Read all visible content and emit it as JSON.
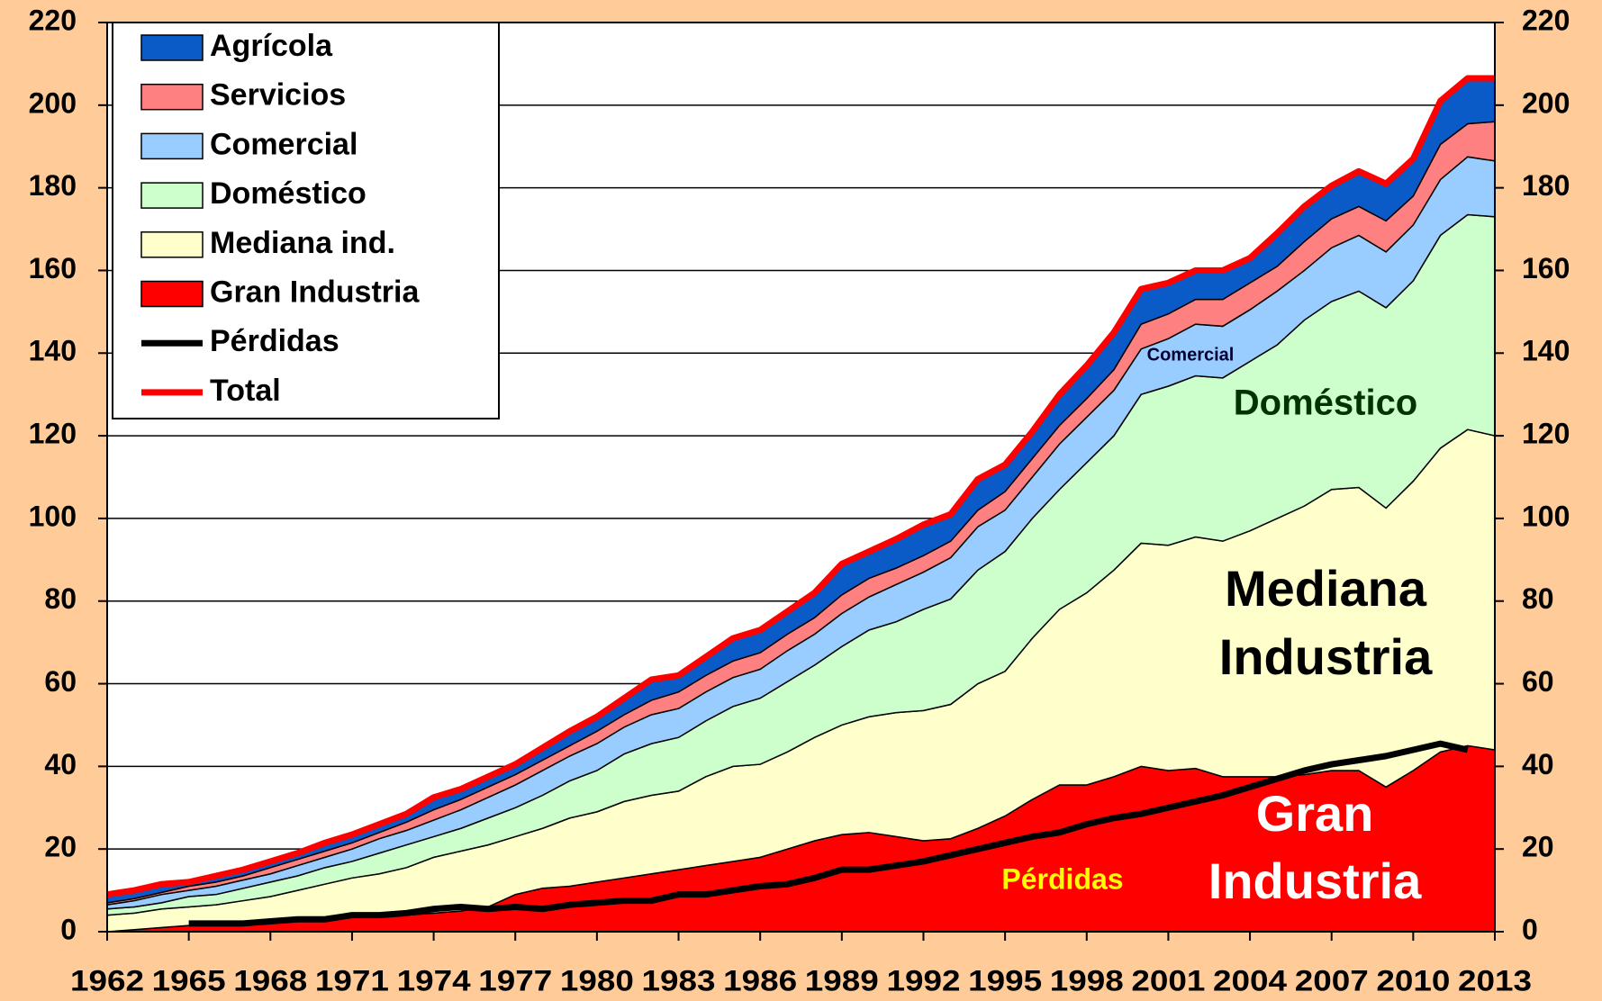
{
  "chart_data": {
    "type": "stacked-area",
    "x": [
      1962,
      1963,
      1964,
      1965,
      1966,
      1967,
      1968,
      1969,
      1970,
      1971,
      1972,
      1973,
      1974,
      1975,
      1976,
      1977,
      1978,
      1979,
      1980,
      1981,
      1982,
      1983,
      1984,
      1985,
      1986,
      1987,
      1988,
      1989,
      1990,
      1991,
      1992,
      1993,
      1994,
      1995,
      1996,
      1997,
      1998,
      1999,
      2000,
      2001,
      2002,
      2003,
      2004,
      2005,
      2006,
      2007,
      2008,
      2009,
      2010,
      2011,
      2012,
      2013
    ],
    "xlim": [
      1962,
      2013
    ],
    "xticks": [
      1962,
      1965,
      1968,
      1971,
      1974,
      1977,
      1980,
      1983,
      1986,
      1989,
      1992,
      1995,
      1998,
      2001,
      2004,
      2007,
      2010,
      2013
    ],
    "ylim": [
      0,
      220
    ],
    "yticks": [
      0,
      20,
      40,
      60,
      80,
      100,
      120,
      140,
      160,
      180,
      200,
      220
    ],
    "y2lim": [
      0,
      220
    ],
    "y2ticks": [
      0,
      20,
      40,
      60,
      80,
      100,
      120,
      140,
      160,
      180,
      200,
      220
    ],
    "grid": true,
    "legend": "upper left",
    "series": [
      {
        "name": "Gran Industria",
        "type": "area",
        "color": "#ff0000",
        "values": [
          0,
          0.5,
          1,
          1.5,
          1.5,
          2,
          2,
          2.5,
          3,
          3.5,
          3.5,
          4,
          4.5,
          5,
          6,
          9,
          10.5,
          11,
          12,
          13,
          14,
          15,
          16,
          17,
          18,
          20,
          22,
          23.5,
          24,
          23,
          22,
          22.5,
          25,
          28,
          32,
          35.5,
          35.5,
          37.5,
          40,
          39,
          39.5,
          37.5,
          37.5,
          37.5,
          38,
          39,
          39,
          35,
          39,
          43.5,
          45,
          44
        ]
      },
      {
        "name": "Mediana ind.",
        "type": "area",
        "color": "#ffffcc",
        "values": [
          4,
          4,
          4.5,
          4.5,
          5,
          5.5,
          6.5,
          7.5,
          8.5,
          9.5,
          10.5,
          11.5,
          13.5,
          14.5,
          15,
          14,
          14.5,
          16.5,
          17,
          18.5,
          19,
          19,
          21.5,
          23,
          22.5,
          23.5,
          25,
          26.5,
          28,
          30,
          31.5,
          32.5,
          35,
          35,
          39,
          42.5,
          46.5,
          50,
          54,
          54.5,
          56,
          57,
          59.5,
          62.5,
          65,
          68,
          68.5,
          67.5,
          70,
          73.5,
          76.5,
          76
        ]
      },
      {
        "name": "Doméstico",
        "type": "area",
        "color": "#ccffcc",
        "values": [
          1.5,
          1.5,
          1.5,
          2.5,
          2.5,
          3,
          3.5,
          3.5,
          4,
          4,
          5,
          5.5,
          5,
          5.5,
          6.5,
          7,
          8,
          9,
          10,
          11.5,
          12.5,
          13,
          13.5,
          14.5,
          16,
          17,
          17.5,
          19,
          21,
          22,
          24.5,
          25.5,
          27.5,
          29,
          29,
          29,
          31.5,
          32.5,
          36,
          38.5,
          39,
          39.5,
          41,
          42,
          45,
          45.5,
          47.5,
          48.5,
          48.5,
          51.5,
          52,
          53
        ]
      },
      {
        "name": "Comercial",
        "type": "area",
        "color": "#99ccff",
        "values": [
          1,
          1.5,
          2,
          1.5,
          2,
          2,
          2,
          2.5,
          2.5,
          3,
          3.5,
          3.5,
          4,
          4.5,
          5,
          5.5,
          6,
          6,
          6.5,
          6.5,
          7,
          7,
          7,
          7,
          7,
          7.5,
          7.5,
          8,
          8,
          9,
          9,
          10,
          10.5,
          10,
          10,
          11,
          11,
          11,
          11,
          11.5,
          12.5,
          12.5,
          12.5,
          13,
          12,
          13,
          13.5,
          13.5,
          13.5,
          13.5,
          14,
          13.5
        ]
      },
      {
        "name": "Servicios",
        "type": "area",
        "color": "#ff8080",
        "values": [
          0.5,
          0.5,
          0.5,
          1,
          1,
          1,
          1.5,
          1.5,
          1.5,
          1.5,
          1.5,
          2,
          2.5,
          2.5,
          2.5,
          2.5,
          2.5,
          2.5,
          3,
          3,
          3.5,
          4,
          4,
          4,
          4,
          4,
          4,
          4.5,
          4.5,
          4,
          4,
          4,
          4,
          4.5,
          4.5,
          4.5,
          4.5,
          5,
          6,
          6,
          6,
          6.5,
          6.5,
          6,
          7,
          7,
          7,
          7.5,
          7,
          8.5,
          8,
          9.5
        ]
      },
      {
        "name": "Agrícola",
        "type": "area",
        "color": "#0a5ac8",
        "values": [
          2,
          2,
          2,
          1,
          1.5,
          1.5,
          1.5,
          1.5,
          2,
          2,
          2,
          2,
          3,
          2.5,
          2.5,
          2.5,
          3,
          3.5,
          3.5,
          4,
          5,
          4,
          4.5,
          5.5,
          5.5,
          5.5,
          6,
          7.5,
          6.5,
          7,
          7.5,
          6.5,
          7.5,
          6.5,
          6.5,
          7.5,
          8,
          9,
          8.5,
          7.5,
          7,
          7,
          6,
          8,
          8.5,
          8,
          8.5,
          9,
          9,
          10.5,
          11,
          10.5
        ]
      },
      {
        "name": "Pérdidas",
        "type": "line",
        "color": "#000000",
        "values": [
          null,
          null,
          null,
          2,
          2,
          2,
          2.5,
          3,
          3,
          4,
          4,
          4.5,
          5.5,
          6,
          5.5,
          6,
          5.5,
          6.5,
          7,
          7.5,
          7.5,
          9,
          9,
          10,
          11,
          11.5,
          13,
          15,
          15,
          16,
          17,
          18.5,
          20,
          21.5,
          23,
          24,
          26,
          27.5,
          28.5,
          30,
          31.5,
          33,
          35,
          37,
          39,
          40.5,
          41.5,
          42.5,
          44,
          45.5,
          44,
          null
        ]
      },
      {
        "name": "Total",
        "type": "line",
        "color": "#ff0000",
        "values": [
          9,
          10,
          11.5,
          12,
          13.5,
          15,
          17,
          19,
          21.5,
          23.5,
          26,
          28.5,
          32.5,
          34.5,
          37.5,
          40.5,
          44.5,
          48.5,
          52,
          56.5,
          61,
          62,
          66.5,
          71,
          73,
          77.5,
          82,
          89,
          92,
          95,
          98.5,
          101,
          109.5,
          113,
          121,
          130,
          137,
          145,
          155.5,
          157,
          160,
          160,
          163,
          169,
          175.5,
          180.5,
          184,
          181,
          187,
          201,
          206.5,
          206.5
        ]
      }
    ],
    "annotations": [
      {
        "lines": [
          "Comercial"
        ],
        "color": "#000033"
      },
      {
        "lines": [
          "Doméstico"
        ],
        "color": "#003300"
      },
      {
        "lines": [
          "Mediana",
          "Industria"
        ],
        "color": "#000000"
      },
      {
        "lines": [
          "Gran",
          "Industria"
        ],
        "color": "#ffffff"
      },
      {
        "lines": [
          "Pérdidas"
        ],
        "color": "#ffff00"
      }
    ]
  }
}
